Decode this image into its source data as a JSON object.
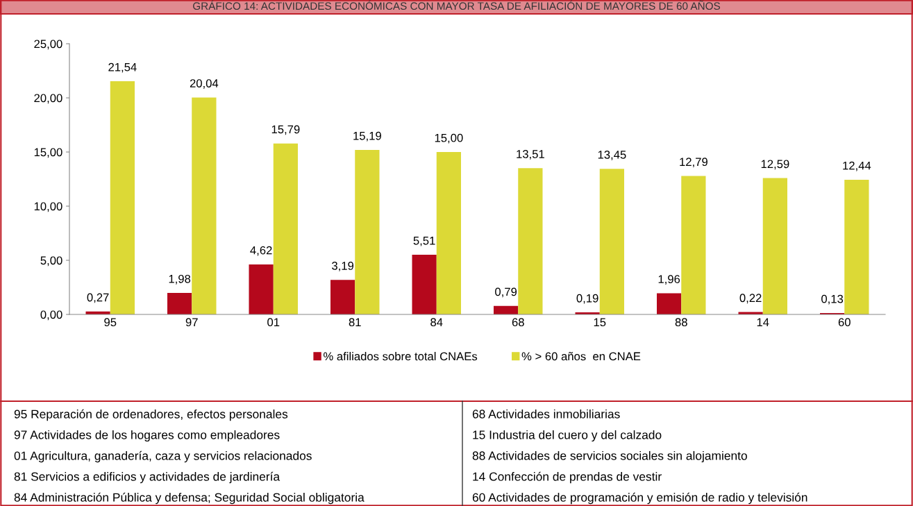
{
  "chart_data": {
    "type": "bar",
    "title": "GRÁFICO 14: ACTIVIDADES ECONÓMICAS CON MAYOR TASA DE AFILIACIÓN DE MAYORES DE 60 AÑOS",
    "categories": [
      "95",
      "97",
      "01",
      "81",
      "84",
      "68",
      "15",
      "88",
      "14",
      "60"
    ],
    "series": [
      {
        "name": "% afiliados sobre total CNAEs",
        "color": "#b5081c",
        "values": [
          0.27,
          1.98,
          4.62,
          3.19,
          5.51,
          0.79,
          0.19,
          1.96,
          0.22,
          0.13
        ],
        "value_labels": [
          "0,27",
          "1,98",
          "4,62",
          "3,19",
          "5,51",
          "0,79",
          "0,19",
          "1,96",
          "0,22",
          "0,13"
        ]
      },
      {
        "name": "% > 60 años  en CNAE",
        "color": "#dcd936",
        "values": [
          21.54,
          20.04,
          15.79,
          15.19,
          15.0,
          13.51,
          13.45,
          12.79,
          12.59,
          12.44
        ],
        "value_labels": [
          "21,54",
          "20,04",
          "15,79",
          "15,19",
          "15,00",
          "13,51",
          "13,45",
          "12,79",
          "12,59",
          "12,44"
        ]
      }
    ],
    "ylim": [
      0,
      25
    ],
    "yticks": [
      {
        "value": 0,
        "label": "0,00"
      },
      {
        "value": 5,
        "label": "5,00"
      },
      {
        "value": 10,
        "label": "10,00"
      },
      {
        "value": 15,
        "label": "15,00"
      },
      {
        "value": 20,
        "label": "20,00"
      },
      {
        "value": 25,
        "label": "25,00"
      }
    ],
    "grid": false,
    "legend": "bottom",
    "annotations": [
      "95 Reparación de ordenadores, efectos personales",
      "97 Actividades de los hogares como empleadores",
      "01 Agricultura, ganadería, caza y servicios relacionados",
      "81 Servicios a edificios y actividades de jardinería",
      "84 Administración Pública y defensa; Seguridad Social obligatoria",
      "68 Actividades inmobiliarias",
      "15 Industria del cuero y del calzado",
      "88 Actividades de servicios sociales sin alojamiento",
      "14 Confección de prendas de vestir",
      "60 Actividades de programación y emisión de radio y televisión"
    ]
  }
}
